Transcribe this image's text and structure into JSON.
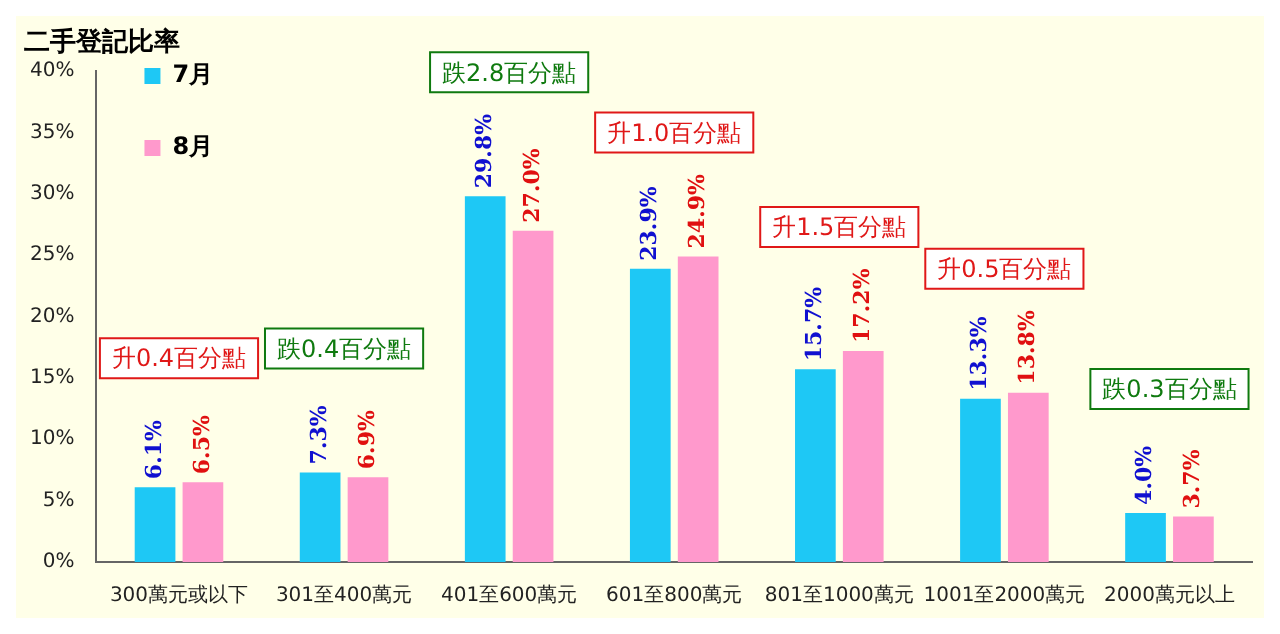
{
  "chart_data": {
    "type": "bar",
    "title": "二手登記比率",
    "categories": [
      "300萬元或以下",
      "301至400萬元",
      "401至600萬元",
      "601至800萬元",
      "801至1000萬元",
      "1001至2000萬元",
      "2000萬元以上"
    ],
    "series": [
      {
        "name": "7月",
        "color": "#1ec8f5",
        "values": [
          6.1,
          7.3,
          29.8,
          23.9,
          15.7,
          13.3,
          4.0
        ],
        "value_labels": [
          "6.1%",
          "7.3%",
          "29.8%",
          "23.9%",
          "15.7%",
          "13.3%",
          "4.0%"
        ]
      },
      {
        "name": "8月",
        "color": "#ff99cc",
        "values": [
          6.5,
          6.9,
          27.0,
          24.9,
          17.2,
          13.8,
          3.7
        ],
        "value_labels": [
          "6.5%",
          "6.9%",
          "27.0%",
          "24.9%",
          "17.2%",
          "13.8%",
          "3.7%"
        ]
      }
    ],
    "ylim": [
      0,
      40
    ],
    "yticks": [
      {
        "value": 0,
        "label": "0%"
      },
      {
        "value": 5,
        "label": "5%"
      },
      {
        "value": 10,
        "label": "10%"
      },
      {
        "value": 15,
        "label": "15%"
      },
      {
        "value": 20,
        "label": "20%"
      },
      {
        "value": 25,
        "label": "25%"
      },
      {
        "value": 30,
        "label": "30%"
      },
      {
        "value": 35,
        "label": "35%"
      },
      {
        "value": 40,
        "label": "40%"
      }
    ],
    "annotations": [
      "升0.4百分點",
      "跌0.4百分點",
      "跌2.8百分點",
      "升1.0百分點",
      "升1.5百分點",
      "升0.5百分點",
      "跌0.3百分點"
    ],
    "legend": "top left",
    "grid": false
  }
}
